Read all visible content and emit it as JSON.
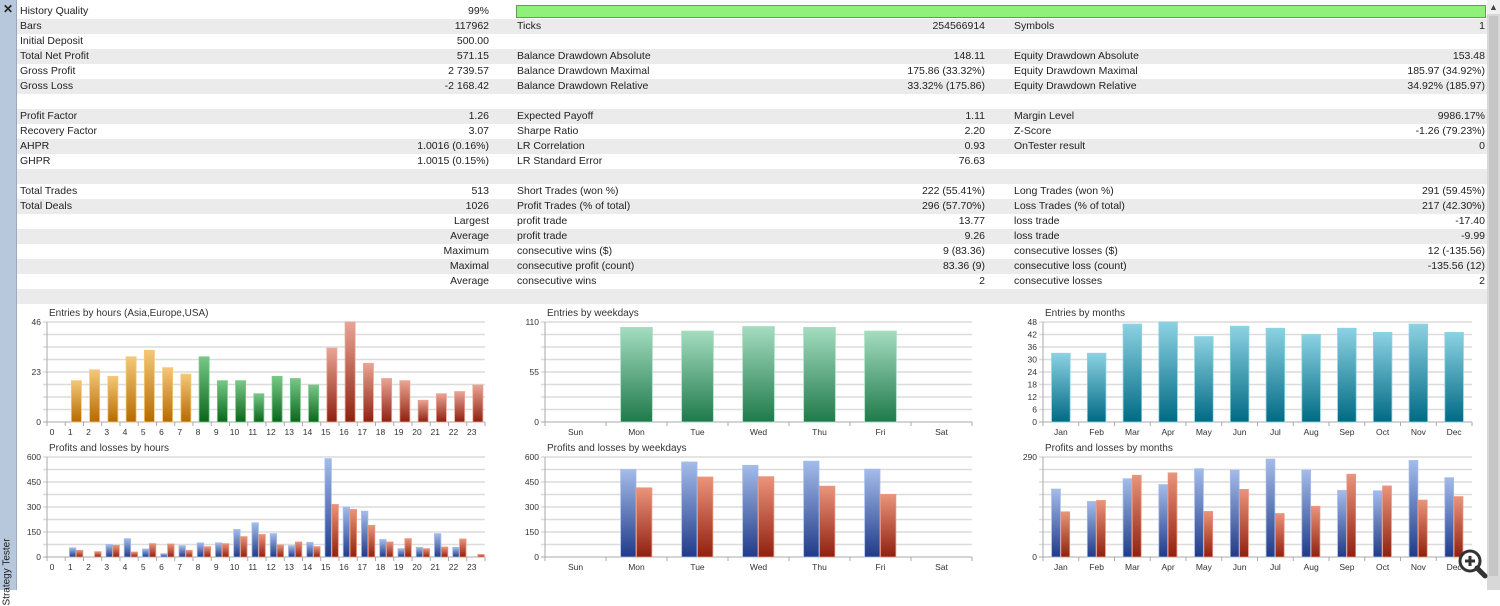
{
  "window": {
    "panel_title": "Strategy Tester",
    "close_icon": "close-icon"
  },
  "stats": {
    "history_quality": {
      "label": "History Quality",
      "value": "99%",
      "percent": 99
    },
    "rows": [
      null,
      [
        "Bars",
        "117962",
        "Ticks",
        "254566914",
        "Symbols",
        "1"
      ],
      [
        "Initial Deposit",
        "500.00",
        "",
        "",
        "",
        ""
      ],
      [
        "Total Net Profit",
        "571.15",
        "Balance Drawdown Absolute",
        "148.11",
        "Equity Drawdown Absolute",
        "153.48"
      ],
      [
        "Gross Profit",
        "2 739.57",
        "Balance Drawdown Maximal",
        "175.86 (33.32%)",
        "Equity Drawdown Maximal",
        "185.97 (34.92%)"
      ],
      [
        "Gross Loss",
        "-2 168.42",
        "Balance Drawdown Relative",
        "33.32% (175.86)",
        "Equity Drawdown Relative",
        "34.92% (185.97)"
      ],
      [
        "",
        "",
        "",
        "",
        "",
        ""
      ],
      [
        "Profit Factor",
        "1.26",
        "Expected Payoff",
        "1.11",
        "Margin Level",
        "9986.17%"
      ],
      [
        "Recovery Factor",
        "3.07",
        "Sharpe Ratio",
        "2.20",
        "Z-Score",
        "-1.26 (79.23%)"
      ],
      [
        "AHPR",
        "1.0016 (0.16%)",
        "LR Correlation",
        "0.93",
        "OnTester result",
        "0"
      ],
      [
        "GHPR",
        "1.0015 (0.15%)",
        "LR Standard Error",
        "76.63",
        "",
        ""
      ],
      [
        "",
        "",
        "",
        "",
        "",
        ""
      ],
      [
        "Total Trades",
        "513",
        "Short Trades (won %)",
        "222 (55.41%)",
        "Long Trades (won %)",
        "291 (59.45%)"
      ],
      [
        "Total Deals",
        "1026",
        "Profit Trades (% of total)",
        "296 (57.70%)",
        "Loss Trades (% of total)",
        "217 (42.30%)"
      ],
      [
        "",
        "Largest",
        "profit trade",
        "13.77",
        "loss trade",
        "-17.40"
      ],
      [
        "",
        "Average",
        "profit trade",
        "9.26",
        "loss trade",
        "-9.99"
      ],
      [
        "",
        "Maximum",
        "consecutive wins ($)",
        "9 (83.36)",
        "consecutive losses ($)",
        "12 (-135.56)"
      ],
      [
        "",
        "Maximal",
        "consecutive profit (count)",
        "83.36 (9)",
        "consecutive loss (count)",
        "-135.56 (12)"
      ],
      [
        "",
        "Average",
        "consecutive wins",
        "2",
        "consecutive losses",
        "2"
      ],
      [
        "",
        "",
        "",
        "",
        "",
        ""
      ]
    ]
  },
  "colors": {
    "quality_bar": "#8ff07a",
    "profit": "#3a5ca8",
    "loss": "#b03a20"
  },
  "chart_data": [
    {
      "id": "entries-hours",
      "type": "bar",
      "title": "Entries by hours (Asia,Europe,USA)",
      "categories": [
        "0",
        "1",
        "2",
        "3",
        "4",
        "5",
        "6",
        "7",
        "8",
        "9",
        "10",
        "11",
        "12",
        "13",
        "14",
        "15",
        "16",
        "17",
        "18",
        "19",
        "20",
        "21",
        "22",
        "23"
      ],
      "values": [
        0,
        19,
        24,
        21,
        30,
        33,
        25,
        22,
        30,
        19,
        19,
        13,
        21,
        20,
        17,
        34,
        46,
        27,
        20,
        19,
        10,
        13,
        14,
        17
      ],
      "ylim": [
        0,
        46
      ],
      "yticks": [
        "0",
        "23",
        "46"
      ],
      "ytick_values": [
        0,
        23,
        46
      ],
      "groups": [
        {
          "name": "Asia",
          "from": 0,
          "to": 7,
          "color": "#d08a20"
        },
        {
          "name": "Europe",
          "from": 8,
          "to": 14,
          "color": "#1a7a2a"
        },
        {
          "name": "USA",
          "from": 15,
          "to": 23,
          "color": "#b03a20"
        }
      ]
    },
    {
      "id": "pl-hours",
      "type": "bar",
      "title": "Profits and losses by hours",
      "categories": [
        "0",
        "1",
        "2",
        "3",
        "4",
        "5",
        "6",
        "7",
        "8",
        "9",
        "10",
        "11",
        "12",
        "13",
        "14",
        "15",
        "16",
        "17",
        "18",
        "19",
        "20",
        "21",
        "22",
        "23"
      ],
      "series": [
        {
          "name": "Profits",
          "values": [
            0,
            55,
            0,
            75,
            110,
            48,
            20,
            68,
            85,
            85,
            165,
            205,
            140,
            68,
            88,
            590,
            300,
            275,
            105,
            50,
            58,
            140,
            58,
            0
          ]
        },
        {
          "name": "Losses",
          "values": [
            0,
            40,
            32,
            70,
            30,
            80,
            78,
            40,
            62,
            80,
            122,
            135,
            72,
            90,
            62,
            315,
            285,
            190,
            90,
            110,
            50,
            60,
            108,
            15
          ]
        }
      ],
      "ylim": [
        0,
        600
      ],
      "yticks": [
        "0",
        "150",
        "300",
        "450",
        "600"
      ],
      "ytick_values": [
        0,
        150,
        300,
        450,
        600
      ]
    },
    {
      "id": "entries-weekdays",
      "type": "bar",
      "title": "Entries by weekdays",
      "categories": [
        "Sun",
        "Mon",
        "Tue",
        "Wed",
        "Thu",
        "Fri",
        "Sat"
      ],
      "values": [
        0,
        104,
        100,
        105,
        104,
        100,
        0
      ],
      "ylim": [
        0,
        110
      ],
      "yticks": [
        "0",
        "55",
        "110"
      ],
      "ytick_values": [
        0,
        55,
        110
      ]
    },
    {
      "id": "pl-weekdays",
      "type": "bar",
      "title": "Profits and losses by weekdays",
      "categories": [
        "Sun",
        "Mon",
        "Tue",
        "Wed",
        "Thu",
        "Fri",
        "Sat"
      ],
      "series": [
        {
          "name": "Profits",
          "values": [
            0,
            525,
            570,
            550,
            575,
            527,
            0
          ]
        },
        {
          "name": "Losses",
          "values": [
            0,
            415,
            480,
            482,
            425,
            375,
            0
          ]
        }
      ],
      "ylim": [
        0,
        600
      ],
      "yticks": [
        "0",
        "150",
        "300",
        "450",
        "600"
      ],
      "ytick_values": [
        0,
        150,
        300,
        450,
        600
      ]
    },
    {
      "id": "entries-months",
      "type": "bar",
      "title": "Entries by months",
      "categories": [
        "Jan",
        "Feb",
        "Mar",
        "Apr",
        "May",
        "Jun",
        "Jul",
        "Aug",
        "Sep",
        "Oct",
        "Nov",
        "Dec"
      ],
      "values": [
        33,
        33,
        47,
        48,
        41,
        46,
        45,
        42,
        45,
        43,
        47,
        43
      ],
      "ylim": [
        0,
        48
      ],
      "yticks": [
        "0",
        "6",
        "12",
        "18",
        "24",
        "30",
        "36",
        "42",
        "48"
      ],
      "ytick_values": [
        0,
        6,
        12,
        18,
        24,
        30,
        36,
        42,
        48
      ]
    },
    {
      "id": "pl-months",
      "type": "bar",
      "title": "Profits and losses by months",
      "categories": [
        "Jan",
        "Feb",
        "Mar",
        "Apr",
        "May",
        "Jun",
        "Jul",
        "Aug",
        "Sep",
        "Oct",
        "Nov",
        "Dec"
      ],
      "series": [
        {
          "name": "Profits",
          "values": [
            197,
            161,
            227,
            210,
            256,
            252,
            284,
            252,
            193,
            192,
            280,
            230
          ]
        },
        {
          "name": "Losses",
          "values": [
            131,
            164,
            237,
            244,
            132,
            196,
            126,
            147,
            240,
            206,
            165,
            175
          ]
        }
      ],
      "ylim": [
        0,
        290
      ],
      "yticks": [
        "0",
        "290"
      ],
      "ytick_values": [
        0,
        290
      ]
    }
  ]
}
